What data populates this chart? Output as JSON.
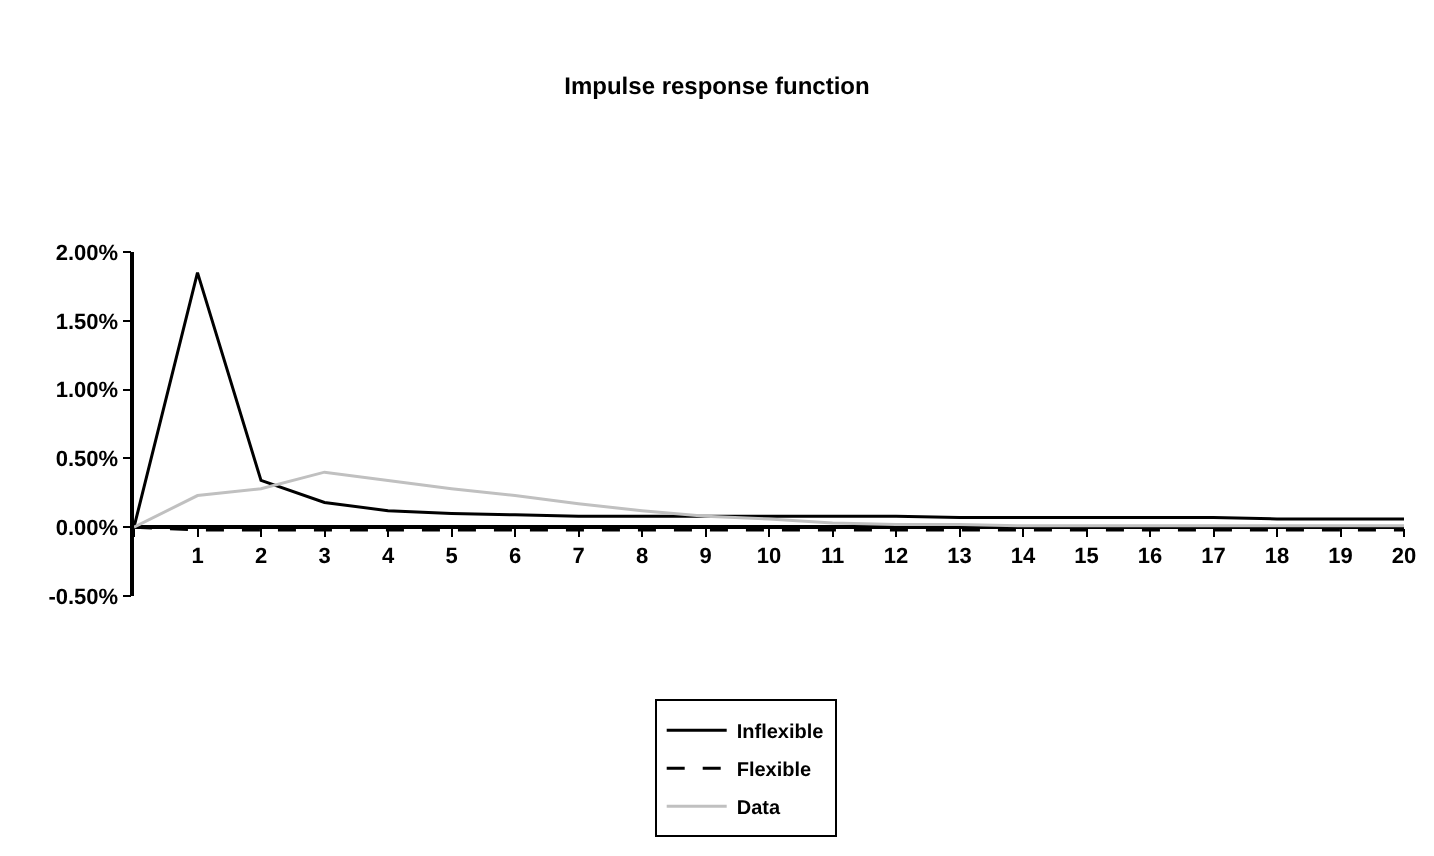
{
  "chart_data": {
    "type": "line",
    "title": "Impulse response function",
    "x": [
      0,
      1,
      2,
      3,
      4,
      5,
      6,
      7,
      8,
      9,
      10,
      11,
      12,
      13,
      14,
      15,
      16,
      17,
      18,
      19,
      20
    ],
    "series": [
      {
        "name": "Inflexible",
        "color": "#000000",
        "line_style": "solid",
        "values": [
          0,
          1.85,
          0.34,
          0.18,
          0.12,
          0.1,
          0.09,
          0.08,
          0.08,
          0.08,
          0.08,
          0.08,
          0.08,
          0.07,
          0.07,
          0.07,
          0.07,
          0.07,
          0.06,
          0.06,
          0.06
        ]
      },
      {
        "name": "Flexible",
        "color": "#000000",
        "line_style": "dashed",
        "values": [
          0,
          -0.02,
          -0.02,
          -0.02,
          -0.02,
          -0.02,
          -0.02,
          -0.02,
          -0.02,
          -0.02,
          -0.02,
          -0.02,
          -0.02,
          -0.02,
          -0.02,
          -0.02,
          -0.02,
          -0.02,
          -0.02,
          -0.02,
          -0.02
        ]
      },
      {
        "name": "Data",
        "color": "#c0c0c0",
        "line_style": "solid",
        "values": [
          0,
          0.23,
          0.28,
          0.4,
          0.34,
          0.28,
          0.23,
          0.17,
          0.12,
          0.08,
          0.06,
          0.03,
          0.02,
          0.02,
          0.01,
          0.01,
          0.01,
          0.01,
          0.01,
          0.01,
          0.01
        ]
      }
    ],
    "xlim": [
      0,
      20
    ],
    "xticks": [
      {
        "value": 0,
        "label": null
      },
      1,
      2,
      3,
      4,
      5,
      6,
      7,
      8,
      9,
      10,
      11,
      12,
      13,
      14,
      15,
      16,
      17,
      18,
      19,
      20
    ],
    "ylim": [
      -0.5,
      2.0
    ],
    "yticks": [
      {
        "value": -0.5,
        "label": "-0.50%"
      },
      {
        "value": 0,
        "label": "0.00%"
      },
      {
        "value": 0.5,
        "label": "0.50%"
      },
      {
        "value": 1.0,
        "label": "1.00%"
      },
      {
        "value": 1.5,
        "label": "1.50%"
      },
      {
        "value": 2.0,
        "label": "2.00%"
      }
    ],
    "legend": "bottom",
    "marker": "none"
  }
}
